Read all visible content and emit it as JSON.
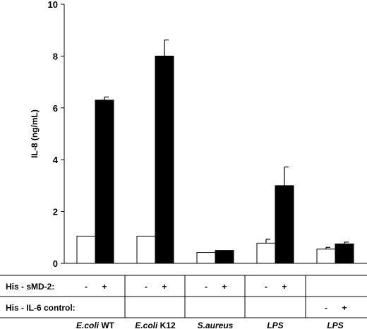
{
  "chart_data": {
    "type": "bar",
    "ylabel": "IL-8 (ng/mL)",
    "ylim": [
      0,
      10
    ],
    "yticks": [
      0,
      2,
      4,
      6,
      8,
      10
    ],
    "categories": [
      {
        "name": "E.coli",
        "suffix": " WT"
      },
      {
        "name": "E.coli",
        "suffix": " K12"
      },
      {
        "name": "S.aureus",
        "suffix": ""
      },
      {
        "name": "LPS",
        "suffix": ""
      },
      {
        "name": "LPS",
        "suffix": ""
      }
    ],
    "series": [
      {
        "color": "#ffffff",
        "values": [
          1.05,
          1.05,
          0.42,
          0.78,
          0.55
        ],
        "errors": [
          0,
          0,
          0,
          0.15,
          0.07
        ]
      },
      {
        "color": "#000000",
        "values": [
          6.3,
          8.0,
          0.5,
          3.0,
          0.75
        ],
        "errors": [
          0.12,
          0.62,
          0,
          0.72,
          0.07
        ]
      }
    ],
    "table": {
      "rows": [
        {
          "label": "His - sMD-2:",
          "signs": [
            [
              "-",
              "+"
            ],
            [
              "-",
              "+"
            ],
            [
              "-",
              "+"
            ],
            [
              "-",
              "+"
            ],
            [
              "",
              ""
            ]
          ]
        },
        {
          "label": "His - IL-6 control:",
          "signs": [
            [
              "",
              ""
            ],
            [
              "",
              ""
            ],
            [
              "",
              ""
            ],
            [
              "",
              ""
            ],
            [
              "-",
              "+"
            ]
          ]
        }
      ]
    }
  }
}
